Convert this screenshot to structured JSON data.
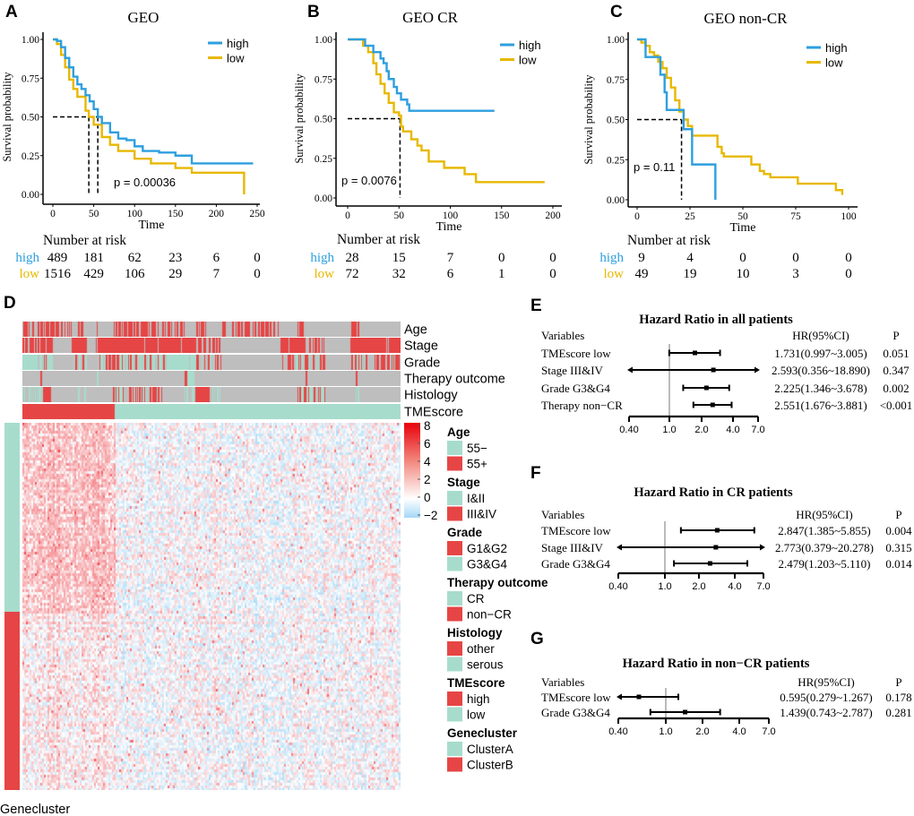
{
  "panel_labels": {
    "A": "A",
    "B": "B",
    "C": "C",
    "D": "D",
    "E": "E",
    "F": "F",
    "G": "G"
  },
  "colors": {
    "high": "#2E9FDF",
    "low": "#E7B800",
    "red": "#E64545",
    "teal": "#A7DCCC",
    "gray": "#BEBEBE"
  },
  "chart_data": [
    {
      "type": "line",
      "panel": "A",
      "title": "GEO",
      "xlabel": "Time",
      "ylabel": "Survival probability",
      "xlim": [
        0,
        250
      ],
      "ylim": [
        0,
        1
      ],
      "xticks": [
        "0",
        "50",
        "100",
        "150",
        "200",
        "250"
      ],
      "yticks": [
        "0.00",
        "0.25",
        "0.50",
        "0.75",
        "1.00"
      ],
      "legend": [
        "high",
        "low"
      ],
      "legend_position": "top-right",
      "pvalue": "p = 0.00036",
      "medians": [
        55,
        44
      ],
      "series": [
        {
          "name": "high",
          "points": [
            [
              0,
              1
            ],
            [
              5,
              0.99
            ],
            [
              10,
              0.95
            ],
            [
              15,
              0.88
            ],
            [
              20,
              0.82
            ],
            [
              25,
              0.76
            ],
            [
              30,
              0.71
            ],
            [
              35,
              0.68
            ],
            [
              40,
              0.64
            ],
            [
              45,
              0.6
            ],
            [
              50,
              0.55
            ],
            [
              55,
              0.5
            ],
            [
              60,
              0.46
            ],
            [
              70,
              0.4
            ],
            [
              80,
              0.36
            ],
            [
              90,
              0.35
            ],
            [
              100,
              0.31
            ],
            [
              110,
              0.28
            ],
            [
              130,
              0.27
            ],
            [
              150,
              0.25
            ],
            [
              167,
              0.25
            ],
            [
              170,
              0.2
            ],
            [
              245,
              0.2
            ]
          ]
        },
        {
          "name": "low",
          "points": [
            [
              0,
              1
            ],
            [
              5,
              0.97
            ],
            [
              10,
              0.9
            ],
            [
              15,
              0.82
            ],
            [
              20,
              0.74
            ],
            [
              25,
              0.68
            ],
            [
              30,
              0.63
            ],
            [
              40,
              0.54
            ],
            [
              44,
              0.5
            ],
            [
              50,
              0.45
            ],
            [
              60,
              0.37
            ],
            [
              70,
              0.32
            ],
            [
              80,
              0.28
            ],
            [
              100,
              0.23
            ],
            [
              120,
              0.2
            ],
            [
              150,
              0.17
            ],
            [
              170,
              0.14
            ],
            [
              234,
              0.13
            ],
            [
              234,
              0
            ]
          ]
        }
      ],
      "risk_table": {
        "title": "Number at risk",
        "times": [
          0,
          50,
          100,
          150,
          200,
          250
        ],
        "rows": [
          {
            "name": "high",
            "values": [
              "489",
              "181",
              "62",
              "23",
              "6",
              "0"
            ]
          },
          {
            "name": "low",
            "values": [
              "1516",
              "429",
              "106",
              "29",
              "7",
              "0"
            ]
          }
        ]
      }
    },
    {
      "type": "line",
      "panel": "B",
      "title": "GEO CR",
      "xlabel": "Time",
      "ylabel": "Survival probability",
      "xlim": [
        0,
        200
      ],
      "ylim": [
        0,
        1
      ],
      "xticks": [
        "0",
        "50",
        "100",
        "150",
        "200"
      ],
      "yticks": [
        "0.00",
        "0.25",
        "0.50",
        "0.75",
        "1.00"
      ],
      "legend": [
        "high",
        "low"
      ],
      "legend_position": "top-right",
      "pvalue": "p = 0.0076",
      "medians": [
        51
      ],
      "series": [
        {
          "name": "high",
          "points": [
            [
              0,
              1
            ],
            [
              15,
              1
            ],
            [
              17,
              0.96
            ],
            [
              23,
              0.96
            ],
            [
              25,
              0.92
            ],
            [
              30,
              0.92
            ],
            [
              32,
              0.88
            ],
            [
              35,
              0.85
            ],
            [
              38,
              0.8
            ],
            [
              40,
              0.75
            ],
            [
              45,
              0.7
            ],
            [
              48,
              0.66
            ],
            [
              52,
              0.62
            ],
            [
              58,
              0.59
            ],
            [
              60,
              0.55
            ],
            [
              143,
              0.55
            ]
          ]
        },
        {
          "name": "low",
          "points": [
            [
              0,
              1
            ],
            [
              12,
              1
            ],
            [
              15,
              0.96
            ],
            [
              20,
              0.92
            ],
            [
              25,
              0.85
            ],
            [
              28,
              0.78
            ],
            [
              32,
              0.72
            ],
            [
              36,
              0.66
            ],
            [
              40,
              0.6
            ],
            [
              45,
              0.54
            ],
            [
              50,
              0.52
            ],
            [
              52,
              0.45
            ],
            [
              54,
              0.42
            ],
            [
              60,
              0.42
            ],
            [
              62,
              0.37
            ],
            [
              68,
              0.33
            ],
            [
              72,
              0.3
            ],
            [
              78,
              0.3
            ],
            [
              79,
              0.23
            ],
            [
              93,
              0.23
            ],
            [
              94,
              0.19
            ],
            [
              112,
              0.19
            ],
            [
              114,
              0.15
            ],
            [
              124,
              0.15
            ],
            [
              125,
              0.1
            ],
            [
              192,
              0.1
            ]
          ]
        }
      ],
      "risk_table": {
        "title": "Number at risk",
        "times": [
          0,
          50,
          100,
          150,
          200
        ],
        "rows": [
          {
            "name": "high",
            "values": [
              "28",
              "15",
              "7",
              "0",
              "0"
            ]
          },
          {
            "name": "low",
            "values": [
              "72",
              "32",
              "6",
              "1",
              "0"
            ]
          }
        ]
      }
    },
    {
      "type": "line",
      "panel": "C",
      "title": "GEO non-CR",
      "xlabel": "Time",
      "ylabel": "Survival probability",
      "xlim": [
        0,
        100
      ],
      "ylim": [
        0,
        1
      ],
      "xticks": [
        "0",
        "25",
        "50",
        "75",
        "100"
      ],
      "yticks": [
        "0.00",
        "0.25",
        "0.50",
        "0.75",
        "1.00"
      ],
      "legend": [
        "high",
        "low"
      ],
      "legend_position": "top-right",
      "pvalue": "p = 0.11",
      "medians": [
        21
      ],
      "series": [
        {
          "name": "high",
          "points": [
            [
              0,
              1
            ],
            [
              3,
              1
            ],
            [
              4,
              0.89
            ],
            [
              10,
              0.89
            ],
            [
              11,
              0.78
            ],
            [
              13,
              0.67
            ],
            [
              14,
              0.56
            ],
            [
              21,
              0.56
            ],
            [
              22,
              0.44
            ],
            [
              25,
              0.44
            ],
            [
              26,
              0.22
            ],
            [
              37,
              0.22
            ],
            [
              37,
              0
            ]
          ]
        },
        {
          "name": "low",
          "points": [
            [
              0,
              1
            ],
            [
              2,
              0.98
            ],
            [
              4,
              0.96
            ],
            [
              6,
              0.92
            ],
            [
              8,
              0.9
            ],
            [
              10,
              0.86
            ],
            [
              12,
              0.82
            ],
            [
              14,
              0.76
            ],
            [
              16,
              0.7
            ],
            [
              18,
              0.62
            ],
            [
              20,
              0.55
            ],
            [
              22,
              0.5
            ],
            [
              24,
              0.46
            ],
            [
              26,
              0.4
            ],
            [
              37,
              0.4
            ],
            [
              38,
              0.33
            ],
            [
              40,
              0.29
            ],
            [
              41,
              0.27
            ],
            [
              52,
              0.27
            ],
            [
              54,
              0.22
            ],
            [
              58,
              0.18
            ],
            [
              60,
              0.16
            ],
            [
              63,
              0.14
            ],
            [
              75,
              0.14
            ],
            [
              76,
              0.1
            ],
            [
              93,
              0.1
            ],
            [
              94,
              0.06
            ],
            [
              97,
              0.06
            ],
            [
              97,
              0.03
            ]
          ]
        }
      ],
      "risk_table": {
        "title": "Number at risk",
        "times": [
          0,
          25,
          50,
          75,
          100
        ],
        "rows": [
          {
            "name": "high",
            "values": [
              "9",
              "4",
              "0",
              "0",
              "0"
            ]
          },
          {
            "name": "low",
            "values": [
              "49",
              "19",
              "10",
              "3",
              "0"
            ]
          }
        ]
      }
    },
    {
      "type": "heatmap",
      "panel": "D",
      "annotation_tracks": [
        "Age",
        "Stage",
        "Grade",
        "Therapy outcome",
        "Histology",
        "TMEscore"
      ],
      "row_annotation": "Genecluster",
      "colorbar_ticks": [
        "8",
        "6",
        "4",
        "2",
        "0",
        "−2"
      ],
      "legends": [
        {
          "title": "Age",
          "items": [
            {
              "label": "55−",
              "color": "teal"
            },
            {
              "label": "55+",
              "color": "red"
            }
          ]
        },
        {
          "title": "Stage",
          "items": [
            {
              "label": "I&II",
              "color": "teal"
            },
            {
              "label": "III&IV",
              "color": "red"
            }
          ]
        },
        {
          "title": "Grade",
          "items": [
            {
              "label": "G1&G2",
              "color": "red"
            },
            {
              "label": "G3&G4",
              "color": "teal"
            }
          ]
        },
        {
          "title": "Therapy outcome",
          "items": [
            {
              "label": "CR",
              "color": "teal"
            },
            {
              "label": "non−CR",
              "color": "red"
            }
          ]
        },
        {
          "title": "Histology",
          "items": [
            {
              "label": "other",
              "color": "red"
            },
            {
              "label": "serous",
              "color": "teal"
            }
          ]
        },
        {
          "title": "TMEscore",
          "items": [
            {
              "label": "high",
              "color": "red"
            },
            {
              "label": "low",
              "color": "teal"
            }
          ]
        },
        {
          "title": "Genecluster",
          "items": [
            {
              "label": "ClusterA",
              "color": "teal"
            },
            {
              "label": "ClusterB",
              "color": "red"
            }
          ]
        }
      ]
    },
    {
      "type": "scatter",
      "panel": "E",
      "title": "Hazard Ratio in all patients",
      "headers": {
        "variables": "Variables",
        "hr": "HR(95%CI)",
        "p": "P"
      },
      "xticks": [
        "0.40",
        "1.0",
        "2.0",
        "4.0",
        "7.0"
      ],
      "xlim": [
        0.4,
        7
      ],
      "rows": [
        {
          "label": "TMEscore low",
          "hr": 1.731,
          "lo": 0.997,
          "hi": 3.005,
          "hr_text": "1.731(0.997~3.005)",
          "p": "0.051"
        },
        {
          "label": "Stage III&IV",
          "hr": 2.593,
          "lo": 0.356,
          "hi": 18.89,
          "hr_text": "2.593(0.356~18.890)",
          "p": "0.347"
        },
        {
          "label": "Grade G3&G4",
          "hr": 2.225,
          "lo": 1.346,
          "hi": 3.678,
          "hr_text": "2.225(1.346~3.678)",
          "p": "0.002"
        },
        {
          "label": "Therapy non−CR",
          "hr": 2.551,
          "lo": 1.676,
          "hi": 3.881,
          "hr_text": "2.551(1.676~3.881)",
          "p": "<0.001"
        }
      ]
    },
    {
      "type": "scatter",
      "panel": "F",
      "title": "Hazard Ratio in CR patients",
      "headers": {
        "variables": "Variables",
        "hr": "HR(95%CI)",
        "p": "P"
      },
      "xticks": [
        "0.40",
        "1.0",
        "2.0",
        "4.0",
        "7.0"
      ],
      "xlim": [
        0.4,
        7
      ],
      "rows": [
        {
          "label": "TMEscore low",
          "hr": 2.847,
          "lo": 1.385,
          "hi": 5.855,
          "hr_text": "2.847(1.385~5.855)",
          "p": "0.004"
        },
        {
          "label": "Stage III&IV",
          "hr": 2.773,
          "lo": 0.379,
          "hi": 20.278,
          "hr_text": "2.773(0.379~20.278)",
          "p": "0.315"
        },
        {
          "label": "Grade G3&G4",
          "hr": 2.479,
          "lo": 1.203,
          "hi": 5.11,
          "hr_text": "2.479(1.203~5.110)",
          "p": "0.014"
        }
      ]
    },
    {
      "type": "scatter",
      "panel": "G",
      "title": "Hazard Ratio in non−CR patients",
      "headers": {
        "variables": "Variables",
        "hr": "HR(95%CI)",
        "p": "P"
      },
      "xticks": [
        "0.40",
        "1.0",
        "2.0",
        "4.0",
        "7.0"
      ],
      "xlim": [
        0.4,
        7
      ],
      "rows": [
        {
          "label": "TMEscore low",
          "hr": 0.595,
          "lo": 0.279,
          "hi": 1.267,
          "hr_text": "0.595(0.279~1.267)",
          "p": "0.178"
        },
        {
          "label": "Grade G3&G4",
          "hr": 1.439,
          "lo": 0.743,
          "hi": 2.787,
          "hr_text": "1.439(0.743~2.787)",
          "p": "0.281"
        }
      ]
    }
  ]
}
